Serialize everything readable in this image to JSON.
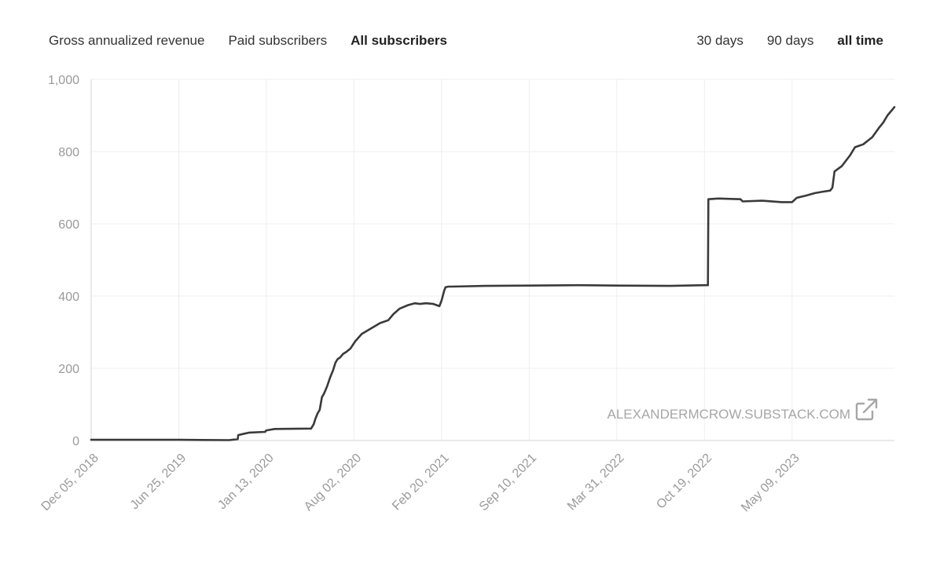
{
  "tabs": {
    "gross": "Gross annualized revenue",
    "paid": "Paid subscribers",
    "all": "All subscribers"
  },
  "ranges": {
    "d30": "30 days",
    "d90": "90 days",
    "all": "all time"
  },
  "watermark": {
    "text": "ALEXANDERMCROW.SUBSTACK.COM",
    "icon": "external-link-icon"
  },
  "colors": {
    "line": "#3a3a3a",
    "grid": "#efefef",
    "axis": "#d4d4d4",
    "tick_text": "#9a9a9a"
  },
  "chart_data": {
    "type": "line",
    "title": "",
    "xlabel": "",
    "ylabel": "",
    "ylim": [
      0,
      1000
    ],
    "yticks": [
      0,
      200,
      400,
      600,
      800,
      1000
    ],
    "ytick_labels": [
      "0",
      "200",
      "400",
      "600",
      "800",
      "1,000"
    ],
    "xlim": [
      "2018-12-05",
      "2023-12-31"
    ],
    "xticks": [
      "2018-12-05",
      "2019-06-25",
      "2020-01-13",
      "2020-08-02",
      "2021-02-20",
      "2021-09-10",
      "2022-03-31",
      "2022-10-19",
      "2023-05-09"
    ],
    "xtick_labels": [
      "Dec 05, 2018",
      "Jun 25, 2019",
      "Jan 13, 2020",
      "Aug 02, 2020",
      "Feb 20, 2021",
      "Sep 10, 2021",
      "Mar 31, 2022",
      "Oct 19, 2022",
      "May 09, 2023"
    ],
    "grid": true,
    "series": [
      {
        "x": [
          "2018-12-05",
          "2019-06-25",
          "2019-10-20",
          "2019-11-08",
          "2019-11-09",
          "2019-11-20",
          "2019-12-05",
          "2020-01-10",
          "2020-01-13",
          "2020-02-01",
          "2020-04-25",
          "2020-05-01",
          "2020-05-05",
          "2020-05-10",
          "2020-05-15",
          "2020-05-20",
          "2020-05-25",
          "2020-06-01",
          "2020-06-08",
          "2020-06-15",
          "2020-06-20",
          "2020-06-25",
          "2020-07-01",
          "2020-07-08",
          "2020-07-15",
          "2020-07-25",
          "2020-08-05",
          "2020-08-20",
          "2020-09-10",
          "2020-10-01",
          "2020-10-20",
          "2020-11-01",
          "2020-11-15",
          "2020-12-05",
          "2020-12-20",
          "2021-01-01",
          "2021-01-15",
          "2021-02-01",
          "2021-02-15",
          "2021-02-20",
          "2021-02-26",
          "2021-03-01",
          "2021-03-03",
          "2021-03-08",
          "2021-03-15",
          "2021-06-01",
          "2021-09-10",
          "2022-01-01",
          "2022-03-31",
          "2022-08-01",
          "2022-10-19",
          "2022-10-27",
          "2022-10-28",
          "2022-11-20",
          "2023-01-10",
          "2023-01-15",
          "2023-03-01",
          "2023-04-15",
          "2023-05-09",
          "2023-05-20",
          "2023-06-10",
          "2023-07-01",
          "2023-07-15",
          "2023-08-05",
          "2023-08-10",
          "2023-08-15",
          "2023-09-01",
          "2023-09-20",
          "2023-10-01",
          "2023-10-20",
          "2023-11-10",
          "2023-11-25",
          "2023-12-05",
          "2023-12-15",
          "2023-12-31"
        ],
        "y": [
          2,
          2,
          1,
          4,
          15,
          18,
          22,
          24,
          28,
          32,
          33,
          45,
          60,
          75,
          85,
          120,
          130,
          150,
          175,
          195,
          215,
          225,
          230,
          240,
          245,
          255,
          275,
          295,
          310,
          325,
          333,
          350,
          365,
          375,
          380,
          378,
          380,
          378,
          372,
          388,
          415,
          424,
          425,
          426,
          426,
          428,
          429,
          430,
          429,
          428,
          430,
          430,
          668,
          670,
          668,
          662,
          664,
          660,
          660,
          672,
          678,
          685,
          688,
          692,
          700,
          745,
          760,
          790,
          812,
          820,
          840,
          865,
          880,
          900,
          923
        ]
      }
    ]
  }
}
